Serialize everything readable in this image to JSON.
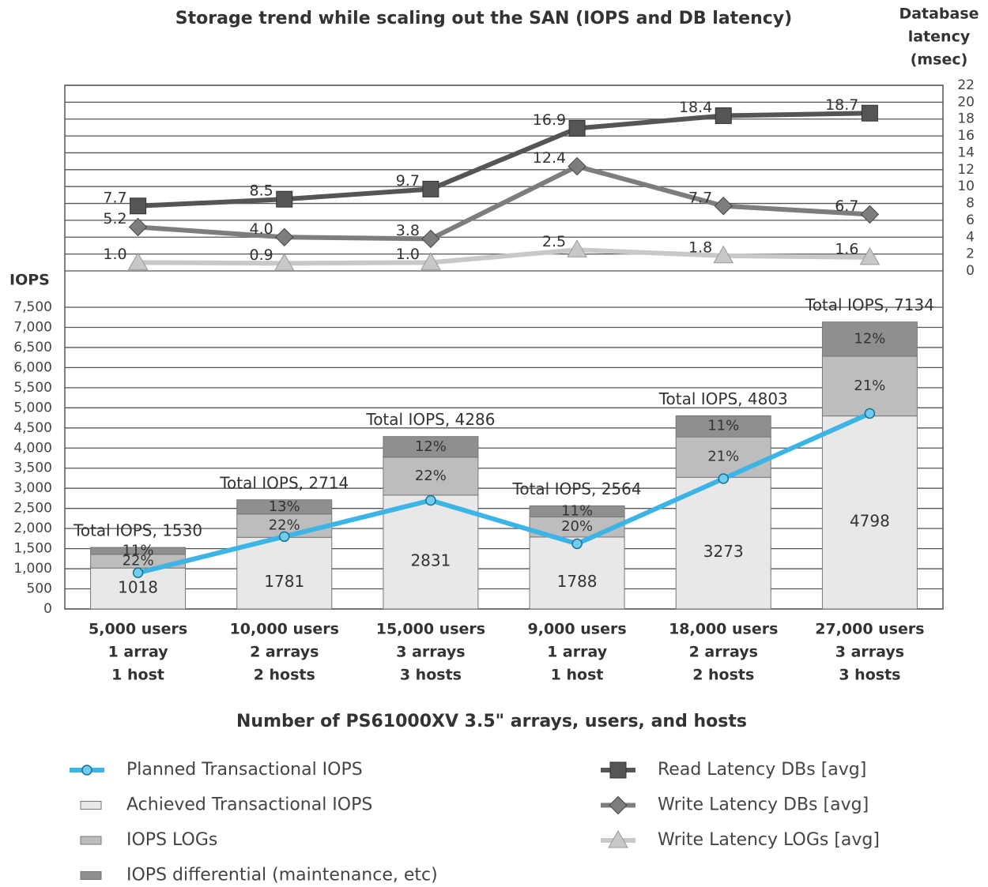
{
  "chart_data": {
    "type": "bar",
    "title": "Storage trend while scaling out the SAN (IOPS and DB latency)",
    "x_label": "Number of PS61000XV 3.5\" arrays, users, and hosts",
    "y_label": "IOPS",
    "y2_label": [
      "Database",
      "latency",
      "(msec)"
    ],
    "categories": [
      [
        "5,000 users",
        "1 array",
        "1 host"
      ],
      [
        "10,000 users",
        "2 arrays",
        "2 hosts"
      ],
      [
        "15,000 users",
        "3 arrays",
        "3 hosts"
      ],
      [
        "9,000 users",
        "1 array",
        "1 host"
      ],
      [
        "18,000 users",
        "2 arrays",
        "2 hosts"
      ],
      [
        "27,000 users",
        "3 arrays",
        "3 hosts"
      ]
    ],
    "total_labels": [
      "Total IOPS, 1530",
      "Total IOPS, 2714",
      "Total IOPS, 4286",
      "Total IOPS, 2564",
      "Total IOPS, 4803",
      "Total IOPS, 7134"
    ],
    "ylim": [
      0,
      7500
    ],
    "yticks": [
      0,
      500,
      {
        "value": 1000,
        "label": "1,000"
      },
      {
        "value": 1500,
        "label": "1,500"
      },
      {
        "value": 2000,
        "label": "2,000"
      },
      {
        "value": 2500,
        "label": "2,500"
      },
      {
        "value": 3000,
        "label": "3,000"
      },
      {
        "value": 3500,
        "label": "3,500"
      },
      {
        "value": 4000,
        "label": "4,000"
      },
      {
        "value": 4500,
        "label": "4,500"
      },
      {
        "value": 5000,
        "label": "5,000"
      },
      {
        "value": 5500,
        "label": "5,500"
      },
      {
        "value": 6000,
        "label": "6,000"
      },
      {
        "value": 6500,
        "label": "6,500"
      },
      {
        "value": 7000,
        "label": "7,000"
      },
      {
        "value": 7500,
        "label": "7,500"
      }
    ],
    "y2lim": [
      0,
      22
    ],
    "y2ticks": [
      0,
      2,
      4,
      6,
      8,
      10,
      12,
      14,
      16,
      18,
      20,
      22
    ],
    "grid": true,
    "series": [
      {
        "name": "Planned Transactional IOPS",
        "kind": "line",
        "marker": "circle",
        "color": "#3cb4e5",
        "values": [
          900,
          1800,
          2700,
          1620,
          3240,
          4860
        ]
      },
      {
        "name": "Achieved Transactional IOPS",
        "kind": "bar",
        "color": "#e8e8e8",
        "values": [
          1018,
          1781,
          2831,
          1788,
          3273,
          4798
        ]
      },
      {
        "name": "IOPS LOGs",
        "kind": "bar",
        "color": "#bdbdbd",
        "values": [
          340,
          580,
          942,
          500,
          1005,
          1486
        ],
        "share_labels": [
          "22%",
          "22%",
          "22%",
          "20%",
          "21%",
          "21%"
        ]
      },
      {
        "name": "IOPS differential (maintenance, etc)",
        "kind": "bar",
        "color": "#8f8f8f",
        "values": [
          172,
          353,
          513,
          276,
          525,
          850
        ],
        "share_labels": [
          "11%",
          "13%",
          "12%",
          "11%",
          "11%",
          "12%"
        ]
      },
      {
        "name": "Read Latency DBs [avg]",
        "kind": "line",
        "axis": "y2",
        "marker": "square",
        "color": "#555555",
        "values": [
          7.7,
          8.5,
          9.7,
          16.9,
          18.4,
          18.7
        ],
        "value_labels": [
          "7.7",
          "8.5",
          "9.7",
          "16.9",
          "18.4",
          "18.7"
        ]
      },
      {
        "name": "Write Latency DBs [avg]",
        "kind": "line",
        "axis": "y2",
        "marker": "diamond",
        "color": "#7d7d7d",
        "values": [
          5.2,
          4.0,
          3.8,
          12.4,
          7.7,
          6.7
        ],
        "value_labels": [
          "5.2",
          "4.0",
          "3.8",
          "12.4",
          "7.7",
          "6.7"
        ]
      },
      {
        "name": "Write Latency LOGs [avg]",
        "kind": "line",
        "axis": "y2",
        "marker": "triangle",
        "color": "#c8c8c8",
        "values": [
          1.0,
          0.9,
          1.0,
          2.5,
          1.8,
          1.6
        ],
        "value_labels": [
          "1.0",
          "0.9",
          "1.0",
          "2.5",
          "1.8",
          "1.6"
        ]
      }
    ]
  }
}
